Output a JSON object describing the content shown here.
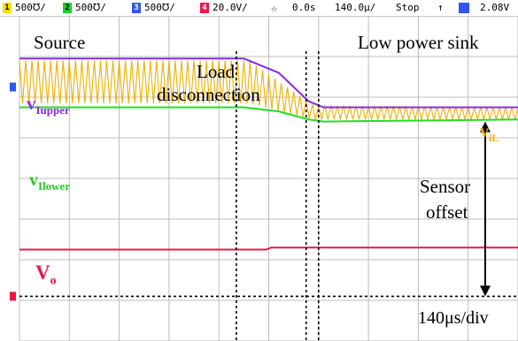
{
  "status_bar": {
    "channels": [
      {
        "number": "1",
        "scale": "500℧/",
        "color": "#f5e000"
      },
      {
        "number": "2",
        "scale": "500℧/",
        "color": "#22cc22"
      },
      {
        "number": "3",
        "scale": "500℧/",
        "color": "#3355ee"
      },
      {
        "number": "4",
        "scale": "20.0V/",
        "color": "#e8184a"
      }
    ],
    "trigger_icon": "trigger-position-icon",
    "time_offset": "0.0s",
    "timebase": "140.0µ/",
    "run_state": "Stop",
    "trigger_slope_icon": "rising-edge-icon",
    "trigger_source_color": "#3355ee",
    "trigger_level": "2.08V"
  },
  "annotations": {
    "source": "Source",
    "low_power_sink": "Low power sink",
    "load_line1": "Load",
    "load_line2": "disconnection",
    "sensor_line1": "Sensor",
    "sensor_line2": "offset",
    "timebase": "140μs/div",
    "v_upper": "v",
    "v_upper_sub": "Iupper",
    "v_lower": "v",
    "v_lower_sub": "Ilower",
    "v_il": "v",
    "v_il_sub": "iL",
    "v_o": "V",
    "v_o_sub": "o"
  },
  "chart_data": {
    "type": "line",
    "title": "",
    "xlabel": "",
    "ylabel": "",
    "grid": true,
    "x_divisions": 10,
    "y_divisions": 8,
    "x_unit": "div",
    "y_unit": "div",
    "xlim": [
      0,
      10
    ],
    "ylim": [
      0,
      8
    ],
    "grid_color": "#bcbcbc",
    "series": [
      {
        "name": "vIupper",
        "color": "#8a2be2",
        "x": [
          0,
          4.5,
          5.2,
          5.8,
          6.1,
          10
        ],
        "y": [
          6.95,
          6.95,
          6.6,
          5.9,
          5.75,
          5.75
        ]
      },
      {
        "name": "viL",
        "color": "#f0b000",
        "type": "triangle",
        "x_start": 0,
        "x_end": 10,
        "envelope_upper": [
          [
            0,
            6.9
          ],
          [
            4.6,
            6.9
          ],
          [
            5.9,
            5.8
          ],
          [
            10,
            5.75
          ]
        ],
        "envelope_lower": [
          [
            0,
            5.85
          ],
          [
            4.6,
            5.85
          ],
          [
            5.9,
            5.45
          ],
          [
            10,
            5.45
          ]
        ],
        "cycles": 80
      },
      {
        "name": "vIlower",
        "color": "#22dd22",
        "x": [
          0,
          4.5,
          5.2,
          5.8,
          6.1,
          10
        ],
        "y": [
          5.75,
          5.75,
          5.65,
          5.45,
          5.4,
          5.45
        ]
      },
      {
        "name": "Vo",
        "color": "#e8184a",
        "x": [
          0,
          4.95,
          5.05,
          10
        ],
        "y": [
          2.25,
          2.25,
          2.3,
          2.3
        ]
      }
    ],
    "ground_marker_level": 1.1,
    "cursors_x": [
      4.35,
      5.75,
      6.0
    ]
  }
}
